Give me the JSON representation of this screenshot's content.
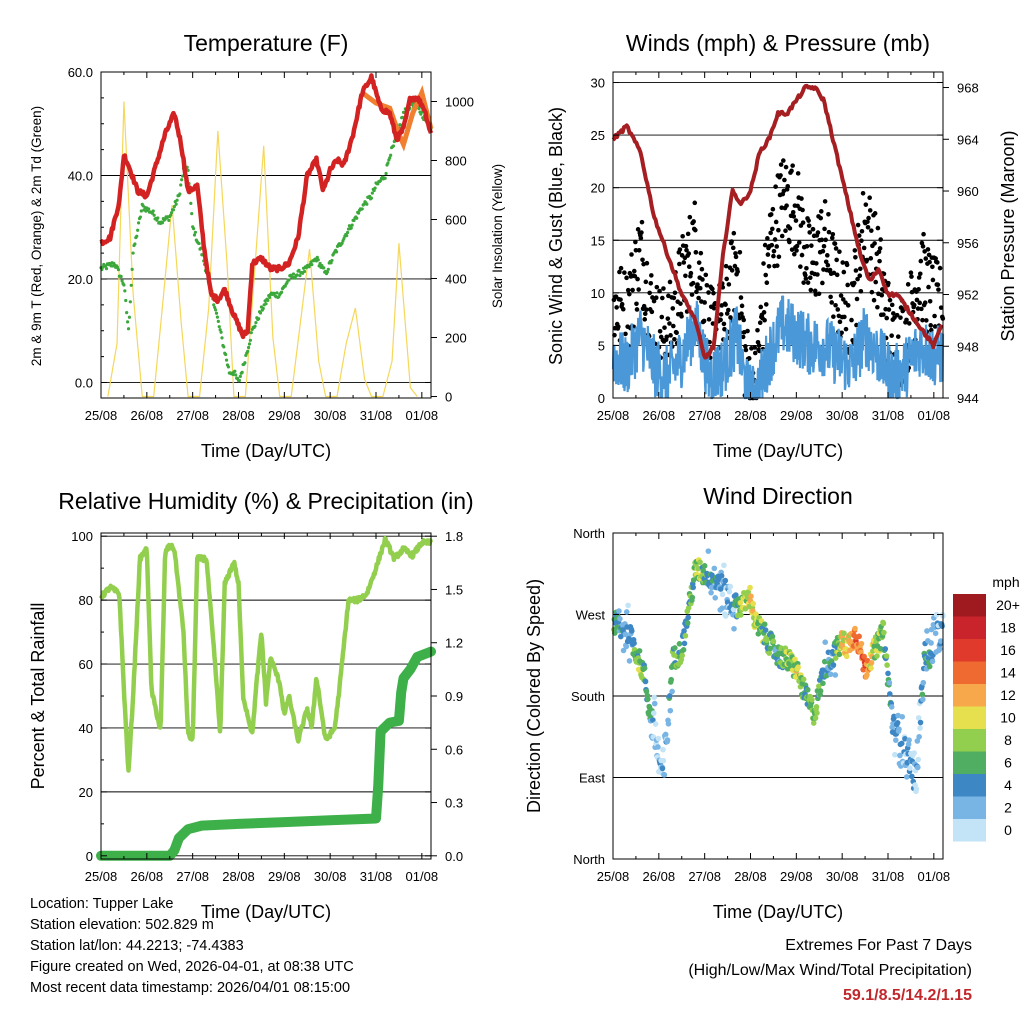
{
  "palette": {
    "temp2m": "#d22222",
    "temp9m": "#f08030",
    "dewpoint": "#3ca83c",
    "solar": "#f5d75a",
    "wind": "#4a98d8",
    "gust": "#000000",
    "pressure": "#a51e22",
    "rh": "#93cf4e",
    "rain": "#3db04a",
    "extremes": "#c0282c"
  },
  "x_ticks": [
    "25/08",
    "26/08",
    "27/08",
    "28/08",
    "29/08",
    "30/08",
    "31/08",
    "01/08"
  ],
  "x_label": "Time (Day/UTC)",
  "chart_data": [
    {
      "id": "temperature",
      "type": "line",
      "title": "Temperature (F)",
      "ylabel": "2m & 9m T (Red, Orange) & 2m Td (Green)",
      "y2label": "Solar Insolation (Yellow)",
      "xlim": [
        0,
        7.2
      ],
      "ylim": [
        -3,
        60
      ],
      "yticks": [
        0,
        20,
        40,
        60
      ],
      "ytick_labels": [
        "0.0",
        "20.0",
        "40.0",
        "60.0"
      ],
      "y2lim": [
        -5,
        1100
      ],
      "y2ticks": [
        0,
        200,
        400,
        600,
        800,
        1000
      ],
      "series": [
        {
          "name": "2m Temperature",
          "color": "#d22222",
          "x": [
            0,
            0.2,
            0.4,
            0.5,
            0.6,
            0.8,
            1.0,
            1.2,
            1.4,
            1.6,
            1.75,
            1.9,
            2.1,
            2.25,
            2.4,
            2.55,
            2.7,
            2.9,
            3.1,
            3.2,
            3.3,
            3.5,
            3.7,
            3.9,
            4.1,
            4.3,
            4.5,
            4.7,
            4.85,
            5.0,
            5.15,
            5.3,
            5.5,
            5.7,
            5.9,
            6.1,
            6.3,
            6.45,
            6.6,
            6.75,
            6.9,
            7.05,
            7.2
          ],
          "values": [
            27,
            28,
            35,
            44,
            42,
            37,
            36,
            42,
            48,
            52,
            46,
            37,
            38,
            26,
            17,
            16,
            18,
            13,
            9,
            10,
            23,
            24,
            22,
            22,
            23,
            28,
            40,
            43,
            37,
            41,
            43,
            42,
            48,
            56,
            59,
            53,
            52,
            47,
            49,
            55,
            55,
            53,
            48
          ]
        },
        {
          "name": "9m Temperature",
          "color": "#f08030",
          "x": [
            5.7,
            6.0,
            6.3,
            6.5,
            6.6,
            6.8,
            7.0,
            7.2
          ],
          "values": [
            56,
            54,
            53,
            48,
            46,
            52,
            56,
            49
          ]
        },
        {
          "name": "2m Dew Point",
          "color": "#3ca83c",
          "x": [
            0,
            0.3,
            0.5,
            0.6,
            0.7,
            0.9,
            1.1,
            1.3,
            1.5,
            1.7,
            1.8,
            1.9,
            2.0,
            2.2,
            2.4,
            2.6,
            2.8,
            2.9,
            3.0,
            3.1,
            3.3,
            3.5,
            3.7,
            3.9,
            4.1,
            4.3,
            4.5,
            4.7,
            4.9,
            5.1,
            5.3,
            5.5,
            5.7,
            5.9,
            6.0,
            6.2,
            6.3,
            6.4,
            6.6,
            6.8,
            7.0,
            7.2
          ],
          "values": [
            22,
            23,
            19,
            10,
            25,
            34,
            33,
            31,
            32,
            36,
            41,
            41,
            30,
            25,
            18,
            10,
            2,
            2,
            0,
            3,
            10,
            14,
            17,
            17,
            20,
            21,
            22,
            24,
            21,
            25,
            28,
            31,
            34,
            36,
            38,
            40,
            44,
            46,
            52,
            54,
            52,
            49
          ]
        },
        {
          "name": "Solar Insolation",
          "color": "#f5d75a",
          "axis": "y2",
          "x": [
            0.15,
            0.35,
            0.5,
            0.7,
            0.9,
            1.15,
            1.35,
            1.55,
            1.75,
            1.9,
            2.15,
            2.35,
            2.55,
            2.75,
            2.9,
            3.15,
            3.35,
            3.55,
            3.75,
            3.9,
            4.15,
            4.35,
            4.55,
            4.75,
            4.9,
            5.15,
            5.35,
            5.55,
            5.75,
            5.9,
            6.15,
            6.35,
            6.5,
            6.75,
            6.9
          ],
          "values": [
            0,
            180,
            1000,
            350,
            0,
            0,
            320,
            650,
            250,
            0,
            0,
            300,
            900,
            450,
            0,
            0,
            420,
            850,
            200,
            0,
            0,
            250,
            500,
            120,
            0,
            0,
            180,
            300,
            60,
            0,
            0,
            120,
            520,
            30,
            0
          ]
        }
      ]
    },
    {
      "id": "winds",
      "type": "scatter",
      "title": "Winds (mph) & Pressure (mb)",
      "ylabel": "Sonic Wind & Gust (Blue, Black)",
      "y2label": "Station Pressure (Maroon)",
      "xlim": [
        0,
        7.2
      ],
      "ylim": [
        0,
        31
      ],
      "yticks": [
        0,
        5,
        10,
        15,
        20,
        25,
        30
      ],
      "y2lim": [
        944,
        969.2
      ],
      "y2ticks": [
        944,
        948,
        952,
        956,
        960,
        964,
        968
      ],
      "series": [
        {
          "name": "Sonic Wind",
          "color": "#4a98d8",
          "type": "band",
          "x": [
            0,
            0.3,
            0.6,
            0.9,
            1.2,
            1.5,
            1.8,
            2.1,
            2.4,
            2.7,
            2.9,
            3.1,
            3.4,
            3.7,
            4.0,
            4.3,
            4.6,
            4.9,
            5.2,
            5.5,
            5.8,
            6.1,
            6.4,
            6.7,
            7.0,
            7.2
          ],
          "values": [
            4,
            3,
            6,
            3,
            2,
            4,
            7,
            2,
            3,
            6,
            1,
            0,
            4,
            7,
            6,
            5,
            5,
            4,
            3,
            6,
            4,
            2,
            3,
            5,
            4,
            4
          ]
        },
        {
          "name": "Gust",
          "color": "#000000",
          "type": "scatter",
          "x": [
            0,
            0.3,
            0.6,
            0.9,
            1.2,
            1.5,
            1.8,
            2.1,
            2.4,
            2.7,
            2.9,
            3.1,
            3.4,
            3.7,
            4.0,
            4.3,
            4.6,
            4.9,
            5.2,
            5.5,
            5.8,
            6.1,
            6.4,
            6.7,
            7.0,
            7.2
          ],
          "values": [
            9,
            8,
            14,
            7,
            6,
            11,
            15,
            6,
            7,
            13,
            3,
            1,
            14,
            19,
            18,
            12,
            15,
            10,
            8,
            17,
            12,
            5,
            6,
            12,
            9,
            8
          ]
        },
        {
          "name": "Station Pressure",
          "color": "#a51e22",
          "type": "line",
          "axis": "y2",
          "x": [
            0,
            0.3,
            0.6,
            0.9,
            1.2,
            1.5,
            1.8,
            2.0,
            2.2,
            2.4,
            2.6,
            2.8,
            3.0,
            3.2,
            3.4,
            3.6,
            3.8,
            4.0,
            4.2,
            4.4,
            4.6,
            4.8,
            5.0,
            5.2,
            5.4,
            5.6,
            5.8,
            6.0,
            6.2,
            6.4,
            6.6,
            6.8,
            7.0,
            7.2
          ],
          "values": [
            964,
            965,
            963,
            958,
            955,
            952,
            950,
            947,
            948,
            955,
            960,
            959,
            960,
            963,
            964,
            966,
            966,
            967,
            968,
            968,
            967,
            964,
            961,
            958,
            955,
            953,
            954,
            952,
            952,
            951,
            950,
            949,
            948,
            950
          ]
        }
      ]
    },
    {
      "id": "humidity",
      "type": "line",
      "title": "Relative Humidity (%) & Precipitation (in)",
      "ylabel": "Percent & Total Rainfall",
      "xlim": [
        0,
        7.2
      ],
      "ylim": [
        -1,
        101
      ],
      "yticks": [
        0,
        20,
        40,
        60,
        80,
        100
      ],
      "y2lim": [
        -0.018,
        1.818
      ],
      "y2ticks": [
        0,
        0.3,
        0.6,
        0.9,
        1.2,
        1.5,
        1.8
      ],
      "y2tick_labels": [
        "0.0",
        "0.3",
        "0.6",
        "0.9",
        "1.2",
        "1.5",
        "1.8"
      ],
      "series": [
        {
          "name": "Relative Humidity",
          "color": "#93cf4e",
          "x": [
            0,
            0.2,
            0.4,
            0.5,
            0.6,
            0.7,
            0.85,
            1.0,
            1.1,
            1.3,
            1.4,
            1.5,
            1.6,
            1.8,
            1.9,
            2.0,
            2.1,
            2.3,
            2.5,
            2.6,
            2.7,
            2.9,
            3.0,
            3.1,
            3.3,
            3.4,
            3.5,
            3.6,
            3.7,
            3.9,
            4.0,
            4.1,
            4.3,
            4.5,
            4.6,
            4.7,
            4.9,
            5.1,
            5.2,
            5.4,
            5.6,
            5.8,
            6.0,
            6.2,
            6.4,
            6.6,
            6.8,
            7.0,
            7.2
          ],
          "values": [
            81,
            84,
            82,
            52,
            26,
            50,
            93,
            96,
            52,
            39,
            95,
            97,
            96,
            70,
            38,
            36,
            93,
            93,
            58,
            38,
            85,
            92,
            85,
            50,
            38,
            55,
            70,
            48,
            62,
            54,
            44,
            50,
            36,
            46,
            40,
            56,
            36,
            40,
            52,
            80,
            80,
            82,
            90,
            99,
            93,
            96,
            94,
            98,
            98
          ]
        },
        {
          "name": "Total Rainfall",
          "color": "#3db04a",
          "axis": "y2",
          "x": [
            0,
            1.5,
            1.6,
            1.7,
            1.9,
            2.2,
            3.0,
            4.0,
            5.0,
            6.0,
            6.05,
            6.1,
            6.3,
            6.5,
            6.55,
            6.6,
            6.75,
            6.9,
            7.2
          ],
          "values": [
            0,
            0,
            0.03,
            0.1,
            0.15,
            0.17,
            0.18,
            0.19,
            0.2,
            0.21,
            0.4,
            0.7,
            0.75,
            0.76,
            0.92,
            1.0,
            1.05,
            1.12,
            1.15
          ]
        }
      ]
    },
    {
      "id": "direction",
      "type": "scatter",
      "title": "Wind Direction",
      "ylabel": "Direction (Colored By Speed)",
      "xlim": [
        0,
        7.2
      ],
      "ylim": [
        0,
        360
      ],
      "ytick_labels": [
        "North",
        "East",
        "South",
        "West",
        "North"
      ],
      "yticks": [
        0,
        90,
        180,
        270,
        360
      ],
      "colorbar_title": "mph",
      "colorbar_labels": [
        "20+",
        "18",
        "16",
        "14",
        "12",
        "10",
        "8",
        "6",
        "4",
        "2",
        "0"
      ],
      "colorbar_colors": [
        "#9e1a1f",
        "#c9242b",
        "#df3a2b",
        "#ef6a31",
        "#f7a84a",
        "#e6e04e",
        "#93cf4e",
        "#4fae61",
        "#3d87c4",
        "#78b4e4",
        "#c3e3f6"
      ],
      "series": [
        {
          "name": "Direction",
          "x": [
            0.1,
            0.2,
            0.3,
            0.5,
            0.6,
            0.7,
            0.8,
            0.9,
            1.0,
            1.1,
            1.3,
            1.5,
            1.6,
            1.8,
            1.9,
            2.0,
            2.2,
            2.4,
            2.6,
            2.8,
            3.0,
            3.1,
            3.2,
            3.4,
            3.6,
            3.8,
            4.0,
            4.2,
            4.4,
            4.6,
            4.8,
            5.0,
            5.1,
            5.3,
            5.5,
            5.7,
            5.9,
            6.1,
            6.3,
            6.5,
            6.6,
            6.8,
            6.9,
            7.0,
            7.1
          ],
          "values": [
            260,
            250,
            255,
            230,
            215,
            200,
            160,
            150,
            110,
            90,
            220,
            230,
            260,
            320,
            318,
            315,
            310,
            300,
            280,
            280,
            290,
            260,
            255,
            240,
            225,
            220,
            210,
            180,
            160,
            210,
            225,
            240,
            235,
            250,
            210,
            230,
            250,
            150,
            130,
            105,
            80,
            230,
            220,
            240,
            250
          ],
          "speeds": [
            6,
            4,
            3,
            8,
            9,
            5,
            6,
            3,
            2,
            2,
            6,
            8,
            7,
            8,
            9,
            6,
            5,
            3,
            2,
            9,
            11,
            10,
            8,
            7,
            5,
            9,
            10,
            7,
            8,
            5,
            4,
            12,
            11,
            14,
            16,
            9,
            8,
            4,
            3,
            3,
            2,
            6,
            5,
            4,
            3
          ]
        }
      ]
    }
  ],
  "info": {
    "location": "Location: Tupper Lake",
    "elevation": "Station elevation: 502.829 m",
    "latlon": "Station lat/lon: 44.2213; -74.4383",
    "created": "Figure created on Wed, 2026-04-01, at 08:38 UTC",
    "recent": "Most recent data timestamp: 2026/04/01 08:15:00"
  },
  "extremes": {
    "title": "Extremes For Past 7 Days",
    "subtitle": "(High/Low/Max Wind/Total Precipitation)",
    "values": "59.1/8.5/14.2/1.15"
  }
}
